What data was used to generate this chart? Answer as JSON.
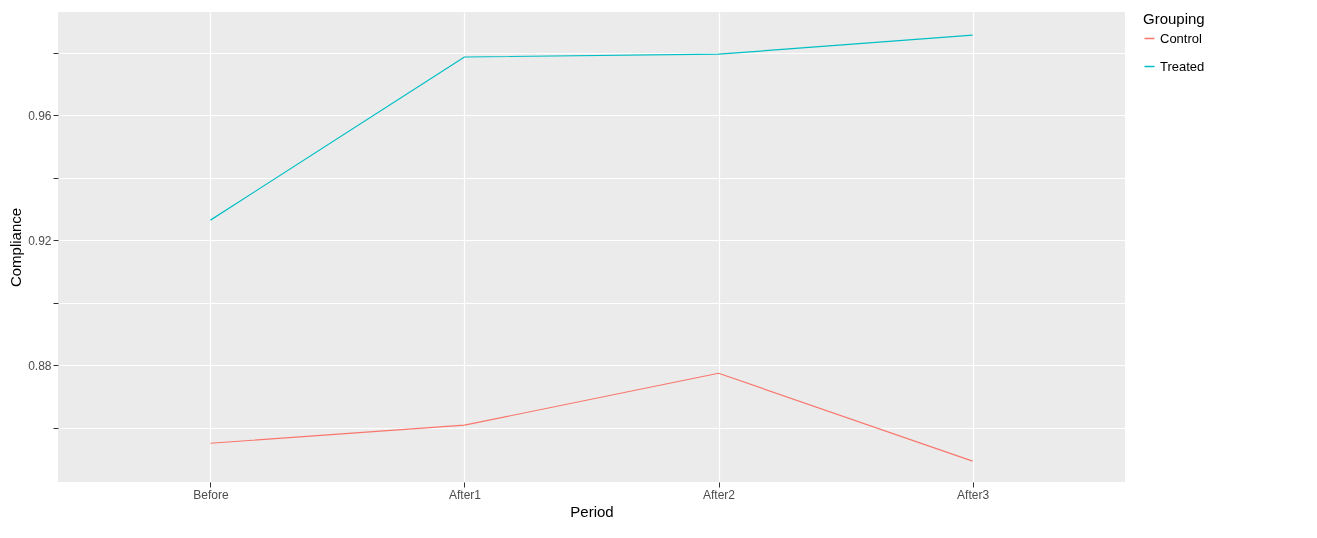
{
  "chart_data": {
    "type": "line",
    "xlabel": "Period",
    "ylabel": "Compliance",
    "legend_title": "Grouping",
    "categories": [
      "Before",
      "After1",
      "After2",
      "After3"
    ],
    "series": [
      {
        "name": "Control",
        "color": "#f8766d",
        "values": [
          0.855,
          0.8608,
          0.8774,
          0.8493
        ]
      },
      {
        "name": "Treated",
        "color": "#00bfc4",
        "values": [
          0.9264,
          0.9786,
          0.9795,
          0.9856
        ]
      }
    ],
    "ylim": [
      0.8426,
      0.993
    ],
    "yticks": [
      {
        "value": 0.86,
        "label": null
      },
      0.88,
      {
        "value": 0.9,
        "label": null
      },
      0.92,
      {
        "value": 0.94,
        "label": null
      },
      0.96,
      {
        "value": 0.98,
        "label": null
      }
    ],
    "grid": true,
    "legend": "right"
  }
}
